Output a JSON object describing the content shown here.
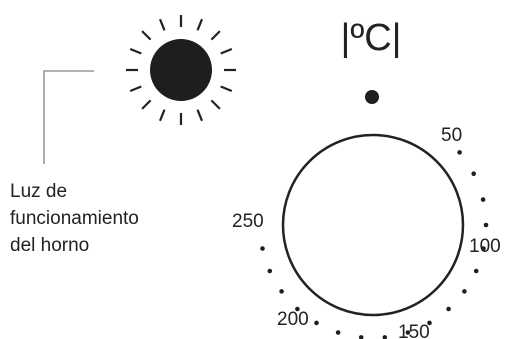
{
  "lamp": {
    "label_lines": [
      "Luz de",
      "funcionamiento",
      "del horno"
    ],
    "icon": "sun-lamp-icon",
    "color": "#1e1e1e",
    "ray_color": "#222222",
    "leader_color": "#999999"
  },
  "thermostat": {
    "unit_label": "|ºC|",
    "indicator_icon": "dot-indicator-icon",
    "scale_labels": [
      "50",
      "100",
      "150",
      "200",
      "250"
    ],
    "knob_stroke": "#222222"
  }
}
